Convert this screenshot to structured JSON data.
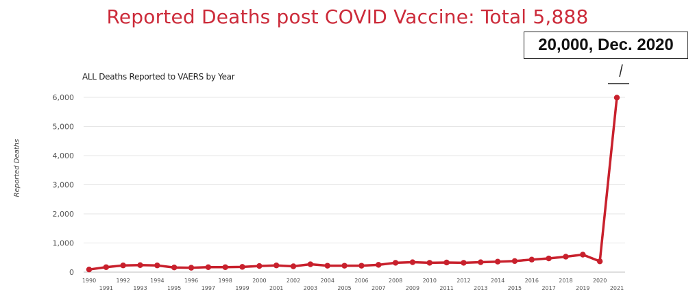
{
  "title": "Reported Deaths post COVID Vaccine: Total 5,888",
  "callout": "20,000, Dec. 2020",
  "colors": {
    "title": "#cc2b3a",
    "line": "#c8202c",
    "grid": "#e6e6e6"
  },
  "chart_data": {
    "type": "line",
    "title": "ALL Deaths Reported to VAERS by Year",
    "xlabel": "",
    "ylabel": "Reported Deaths",
    "ylim": [
      0,
      6000
    ],
    "yticks": [
      0,
      1000,
      2000,
      3000,
      4000,
      5000,
      6000
    ],
    "ytick_labels": [
      "0",
      "1,000",
      "2,000",
      "3,000",
      "4,000",
      "5,000",
      "6,000"
    ],
    "grid": true,
    "categories": [
      "1990",
      "1991",
      "1992",
      "1993",
      "1994",
      "1995",
      "1996",
      "1997",
      "1998",
      "1999",
      "2000",
      "2001",
      "2002",
      "2003",
      "2004",
      "2005",
      "2006",
      "2007",
      "2008",
      "2009",
      "2010",
      "2011",
      "2012",
      "2013",
      "2014",
      "2015",
      "2016",
      "2017",
      "2018",
      "2019",
      "2020",
      "2021"
    ],
    "values": [
      90,
      170,
      230,
      240,
      230,
      160,
      150,
      170,
      170,
      180,
      210,
      230,
      200,
      270,
      220,
      220,
      220,
      250,
      320,
      340,
      320,
      330,
      320,
      340,
      360,
      380,
      430,
      470,
      530,
      600,
      370,
      5990
    ]
  }
}
